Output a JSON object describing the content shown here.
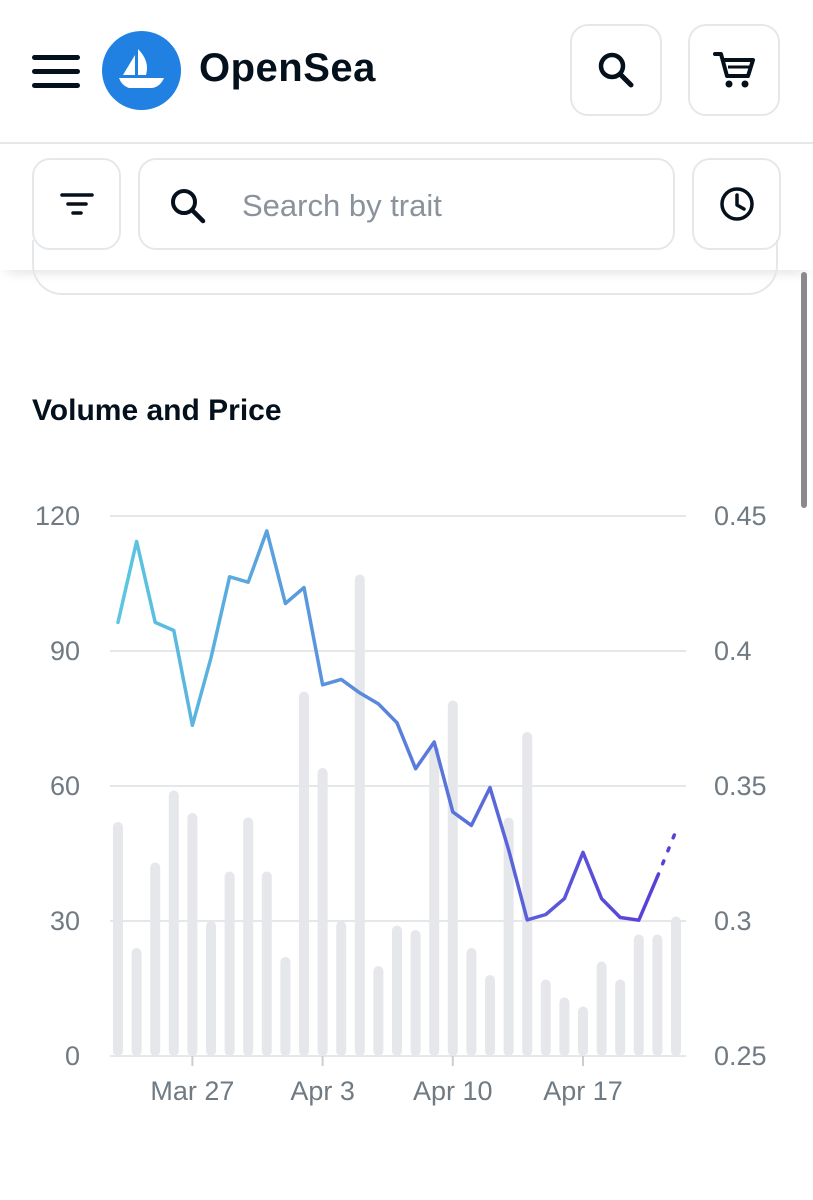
{
  "header": {
    "brand": "OpenSea",
    "menu_icon": "hamburger-menu-icon",
    "logo_icon": "sailboat-logo-icon",
    "search_icon": "search-icon",
    "cart_icon": "cart-icon",
    "brand_color": "#2081e2"
  },
  "filterbar": {
    "filter_icon": "filter-icon",
    "search_placeholder": "Search by trait",
    "history_icon": "clock-icon"
  },
  "section": {
    "title": "Volume and Price"
  },
  "chart_data": {
    "type": "bar",
    "title": "Volume and Price",
    "x_ticks": [
      "Mar 27",
      "Apr 3",
      "Apr 10",
      "Apr 17"
    ],
    "x_tick_days": [
      4,
      11,
      18,
      25
    ],
    "left_axis": {
      "ticks": [
        "120",
        "90",
        "60",
        "30",
        "0"
      ],
      "ylim": [
        0,
        120
      ]
    },
    "right_axis": {
      "ticks": [
        "0.45",
        "0.4",
        "0.35",
        "0.3",
        "0.25"
      ],
      "ylim": [
        0.25,
        0.45
      ]
    },
    "grid": true,
    "series": [
      {
        "kind": "bar",
        "axis": "left",
        "color": "#e5e7ea",
        "values": [
          52,
          24,
          43,
          59,
          54,
          30,
          41,
          53,
          41,
          22,
          81,
          64,
          30,
          107,
          20,
          29,
          28,
          69,
          79,
          24,
          18,
          53,
          72,
          17,
          13,
          11,
          21,
          17,
          27,
          27,
          31
        ]
      },
      {
        "kind": "line",
        "axis": "right",
        "color_start": "#5ac8e0",
        "color_end": "#5a3ed8",
        "values": [
          0.4106,
          0.4406,
          0.4106,
          0.4076,
          0.3725,
          0.3975,
          0.4275,
          0.4255,
          0.4445,
          0.4176,
          0.4235,
          0.3875,
          0.3895,
          0.3845,
          0.3804,
          0.3734,
          0.3564,
          0.3663,
          0.3404,
          0.3354,
          0.3494,
          0.3264,
          0.3004,
          0.3024,
          0.3083,
          0.3254,
          0.3083,
          0.3013,
          0.3003,
          0.3164
        ],
        "projected_next": 0.3334
      }
    ]
  }
}
